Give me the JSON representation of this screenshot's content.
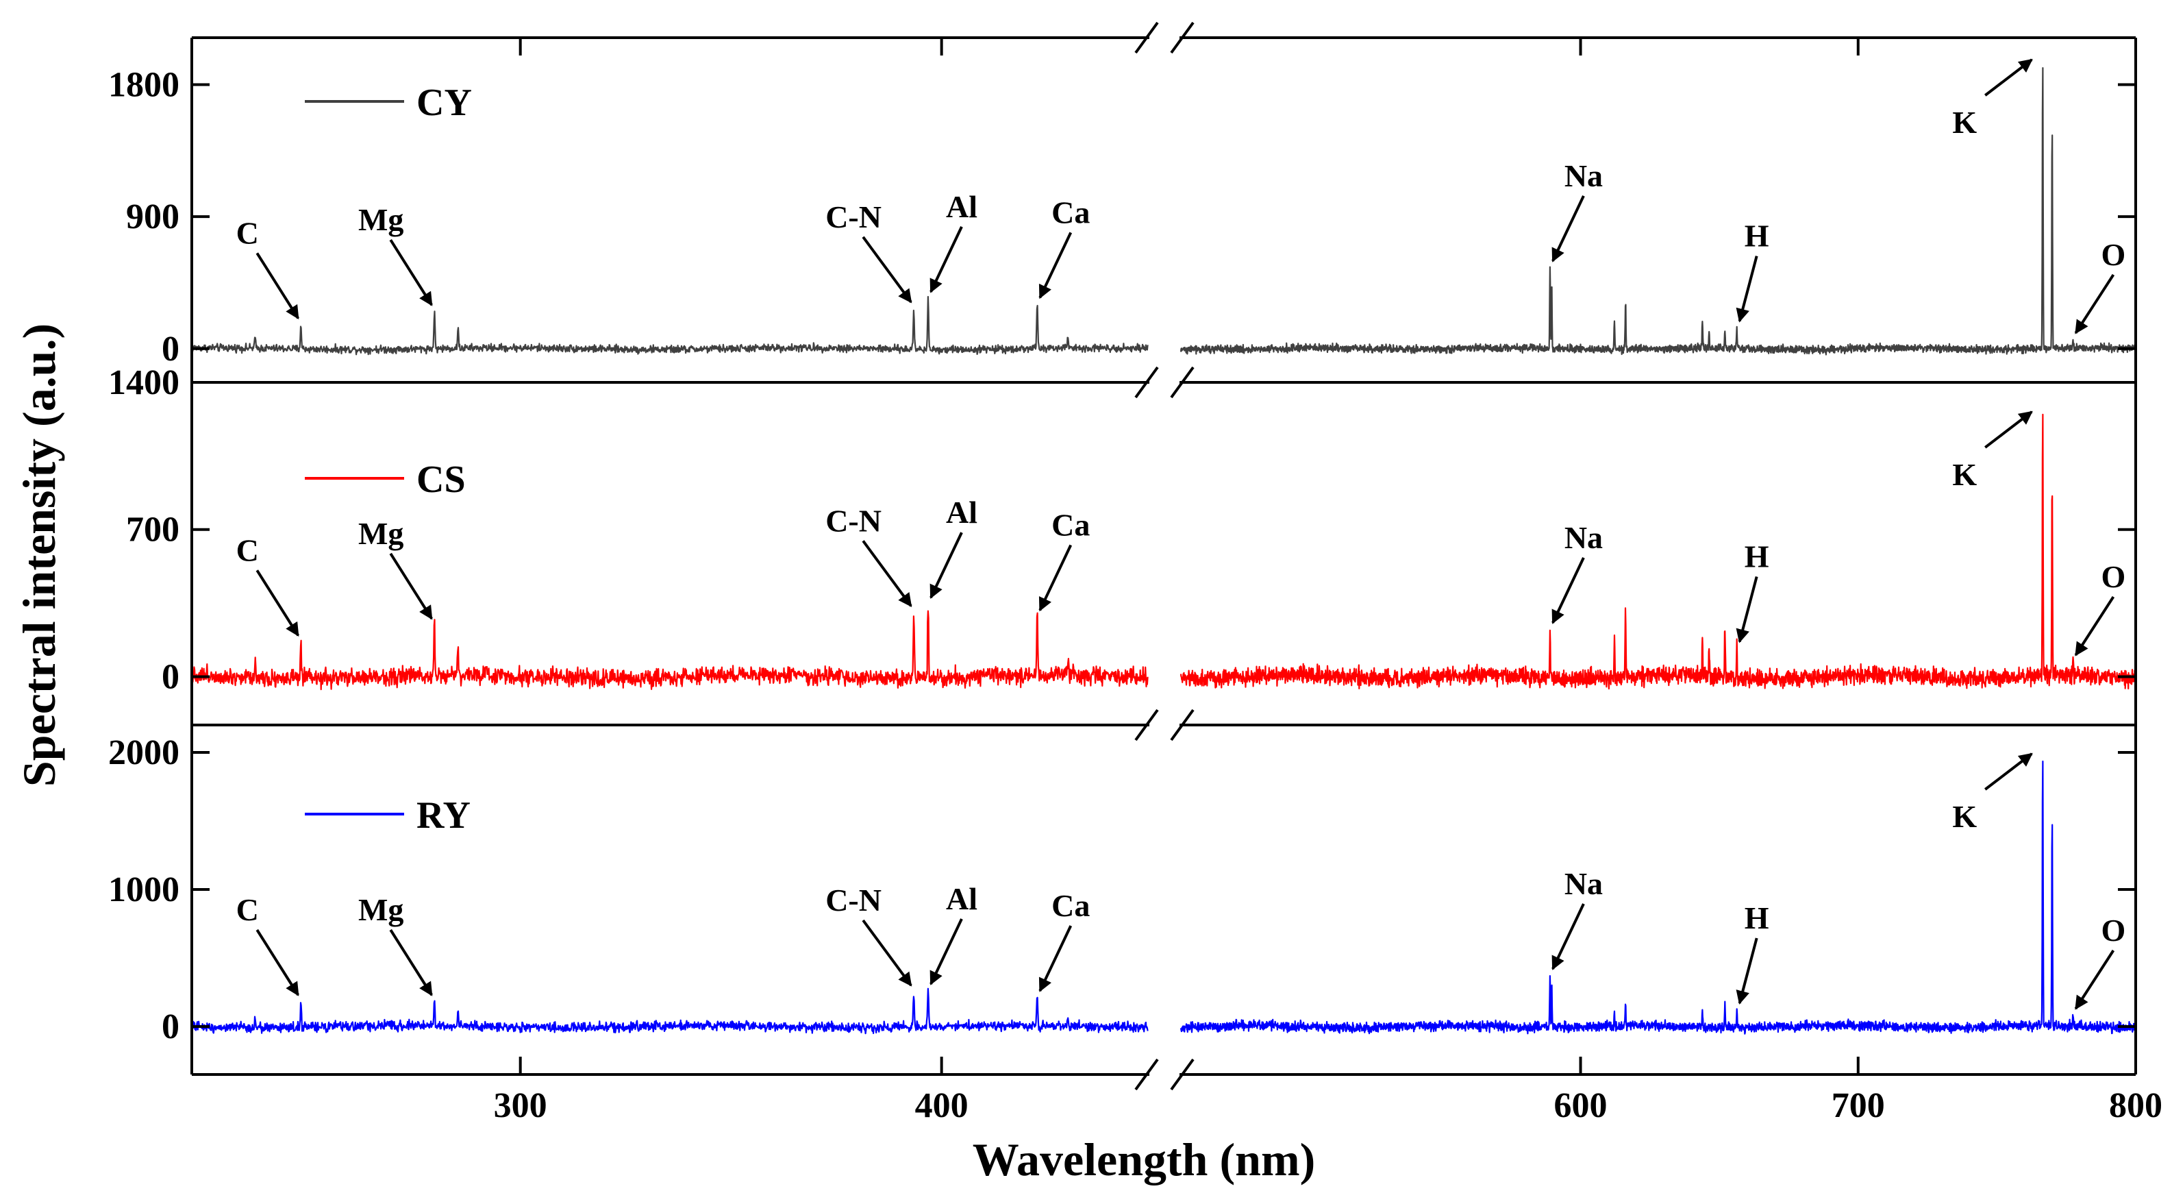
{
  "chart_data": {
    "type": "line",
    "xlabel": "Wavelength (nm)",
    "ylabel": "Spectral intensity (a.u.)",
    "x_break": [
      449,
      456
    ],
    "x_segments": [
      {
        "range": [
          222,
          449
        ],
        "ticks": [
          {
            "value": 300,
            "label": "300"
          },
          {
            "value": 400,
            "label": "400"
          }
        ]
      },
      {
        "range": [
          456,
          800
        ],
        "ticks": [
          {
            "value": 600,
            "label": "600"
          },
          {
            "value": 700,
            "label": "700"
          },
          {
            "value": 800,
            "label": "800"
          }
        ]
      }
    ],
    "panels": [
      {
        "name": "CY",
        "color": "#404040",
        "ylim": [
          -230,
          2120
        ],
        "yticks": [
          {
            "value": 0,
            "label": "0"
          },
          {
            "value": 900,
            "label": "900"
          },
          {
            "value": 1800,
            "label": "1800"
          }
        ],
        "noise": 16,
        "peaks": [
          {
            "x": 247.9,
            "y": 170
          },
          {
            "x": 279.6,
            "y": 260
          },
          {
            "x": 285.2,
            "y": 140
          },
          {
            "x": 237.0,
            "y": 70
          },
          {
            "x": 393.4,
            "y": 280
          },
          {
            "x": 396.8,
            "y": 350
          },
          {
            "x": 422.7,
            "y": 310
          },
          {
            "x": 430.0,
            "y": 60
          },
          {
            "x": 589.0,
            "y": 560
          },
          {
            "x": 589.6,
            "y": 450
          },
          {
            "x": 612.2,
            "y": 190
          },
          {
            "x": 616.2,
            "y": 330
          },
          {
            "x": 643.9,
            "y": 190
          },
          {
            "x": 646.3,
            "y": 120
          },
          {
            "x": 656.3,
            "y": 150
          },
          {
            "x": 652.0,
            "y": 130
          },
          {
            "x": 766.5,
            "y": 1970
          },
          {
            "x": 769.9,
            "y": 1530
          },
          {
            "x": 777.4,
            "y": 60
          }
        ],
        "annotations": [
          {
            "label": "C",
            "x": 247.9,
            "y": 170
          },
          {
            "label": "Mg",
            "x": 279.6,
            "y": 260
          },
          {
            "label": "C-N",
            "x": 393.4,
            "y": 280
          },
          {
            "label": "Al",
            "x": 396.8,
            "y": 350
          },
          {
            "label": "Ca",
            "x": 422.7,
            "y": 310
          },
          {
            "label": "Na",
            "x": 589.0,
            "y": 560
          },
          {
            "label": "H",
            "x": 656.3,
            "y": 150
          },
          {
            "label": "K",
            "x": 766.5,
            "y": 1970
          },
          {
            "label": "O",
            "x": 777.4,
            "y": 60
          }
        ]
      },
      {
        "name": "CS",
        "color": "#ff0000",
        "ylim": [
          -230,
          1400
        ],
        "yticks": [
          {
            "value": 0,
            "label": "0"
          },
          {
            "value": 700,
            "label": "700"
          },
          {
            "value": 1400,
            "label": "1400"
          }
        ],
        "noise": 26,
        "peaks": [
          {
            "x": 247.9,
            "y": 170
          },
          {
            "x": 279.6,
            "y": 250
          },
          {
            "x": 285.2,
            "y": 130
          },
          {
            "x": 237.0,
            "y": 80
          },
          {
            "x": 393.4,
            "y": 310
          },
          {
            "x": 396.8,
            "y": 350
          },
          {
            "x": 422.7,
            "y": 290
          },
          {
            "x": 430.0,
            "y": 90
          },
          {
            "x": 589.0,
            "y": 230
          },
          {
            "x": 612.2,
            "y": 200
          },
          {
            "x": 616.2,
            "y": 320
          },
          {
            "x": 643.9,
            "y": 200
          },
          {
            "x": 646.3,
            "y": 120
          },
          {
            "x": 652.0,
            "y": 240
          },
          {
            "x": 656.3,
            "y": 140
          },
          {
            "x": 766.5,
            "y": 1260
          },
          {
            "x": 769.9,
            "y": 950
          },
          {
            "x": 777.4,
            "y": 70
          }
        ],
        "annotations": [
          {
            "label": "C",
            "x": 247.9,
            "y": 170
          },
          {
            "label": "Mg",
            "x": 279.6,
            "y": 250
          },
          {
            "label": "C-N",
            "x": 393.4,
            "y": 310
          },
          {
            "label": "Al",
            "x": 396.8,
            "y": 350
          },
          {
            "label": "Ca",
            "x": 422.7,
            "y": 290
          },
          {
            "label": "Na",
            "x": 589.0,
            "y": 230
          },
          {
            "label": "H",
            "x": 656.3,
            "y": 140
          },
          {
            "label": "K",
            "x": 766.5,
            "y": 1260
          },
          {
            "label": "O",
            "x": 777.4,
            "y": 70
          }
        ]
      },
      {
        "name": "RY",
        "color": "#0000ff",
        "ylim": [
          -350,
          2200
        ],
        "yticks": [
          {
            "value": 0,
            "label": "0"
          },
          {
            "value": 1000,
            "label": "1000"
          },
          {
            "value": 2000,
            "label": "2000"
          }
        ],
        "noise": 22,
        "peaks": [
          {
            "x": 247.9,
            "y": 190
          },
          {
            "x": 279.6,
            "y": 190
          },
          {
            "x": 285.2,
            "y": 110
          },
          {
            "x": 237.0,
            "y": 70
          },
          {
            "x": 393.4,
            "y": 260
          },
          {
            "x": 396.8,
            "y": 270
          },
          {
            "x": 422.7,
            "y": 220
          },
          {
            "x": 430.0,
            "y": 60
          },
          {
            "x": 589.0,
            "y": 380
          },
          {
            "x": 589.6,
            "y": 300
          },
          {
            "x": 612.2,
            "y": 110
          },
          {
            "x": 616.2,
            "y": 170
          },
          {
            "x": 643.9,
            "y": 110
          },
          {
            "x": 652.0,
            "y": 170
          },
          {
            "x": 656.3,
            "y": 130
          },
          {
            "x": 766.5,
            "y": 1990
          },
          {
            "x": 769.9,
            "y": 1520
          },
          {
            "x": 777.4,
            "y": 80
          }
        ],
        "annotations": [
          {
            "label": "C",
            "x": 247.9,
            "y": 190
          },
          {
            "label": "Mg",
            "x": 279.6,
            "y": 190
          },
          {
            "label": "C-N",
            "x": 393.4,
            "y": 260
          },
          {
            "label": "Al",
            "x": 396.8,
            "y": 270
          },
          {
            "label": "Ca",
            "x": 422.7,
            "y": 220
          },
          {
            "label": "Na",
            "x": 589.0,
            "y": 380
          },
          {
            "label": "H",
            "x": 656.3,
            "y": 130
          },
          {
            "label": "K",
            "x": 766.5,
            "y": 1990
          },
          {
            "label": "O",
            "x": 777.4,
            "y": 80
          }
        ]
      }
    ]
  }
}
